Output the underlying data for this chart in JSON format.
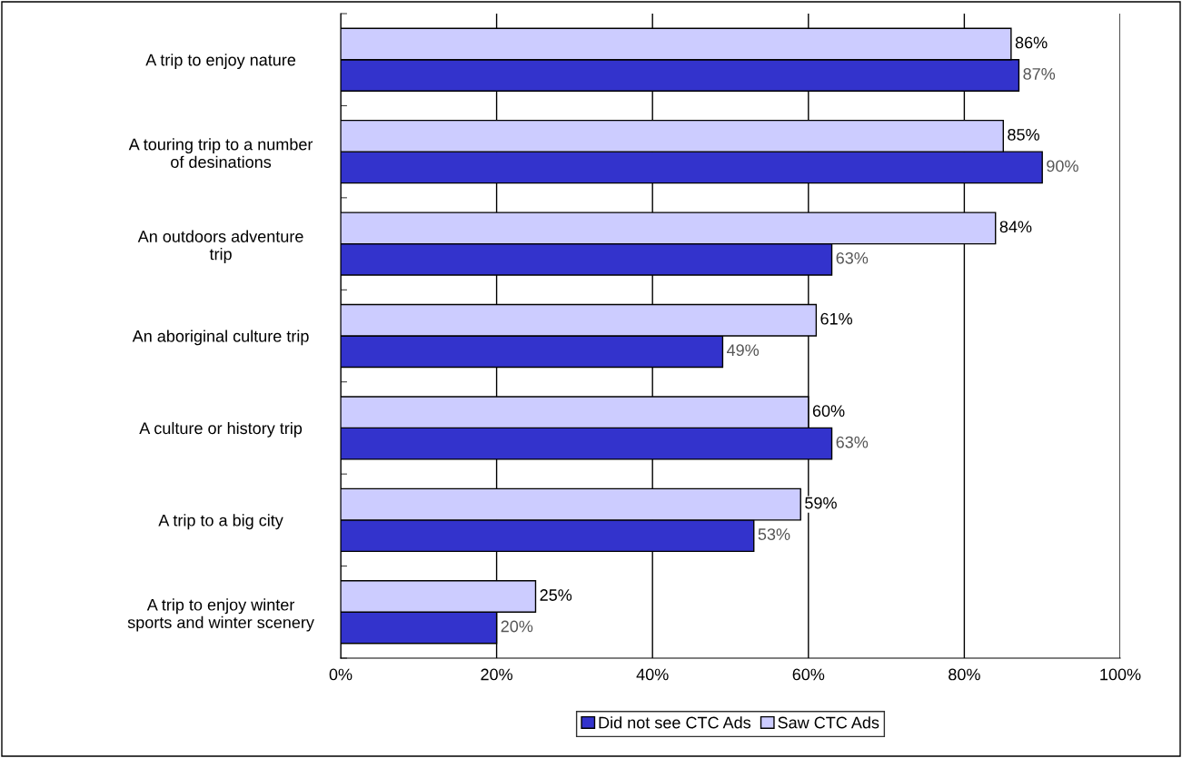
{
  "chart_data": {
    "type": "bar",
    "orientation": "horizontal",
    "categories": [
      "A trip to enjoy nature",
      "A touring trip to a number\nof desinations",
      "An outdoors adventure\ntrip",
      "An aboriginal culture trip",
      "A culture or history trip",
      "A trip to a big city",
      "A trip to enjoy winter\nsports and winter scenery"
    ],
    "series": [
      {
        "name": "Did not see CTC Ads",
        "color": "#3333cc",
        "values": [
          87,
          90,
          63,
          49,
          63,
          53,
          20
        ],
        "value_labels": [
          "87%",
          "90%",
          "63%",
          "49%",
          "63%",
          "53%",
          "20%"
        ]
      },
      {
        "name": "Saw CTC Ads",
        "color": "#ccccff",
        "values": [
          86,
          85,
          84,
          61,
          60,
          59,
          25
        ],
        "value_labels": [
          "86%",
          "85%",
          "84%",
          "61%",
          "60%",
          "59%",
          "25%"
        ]
      }
    ],
    "xlim": [
      0,
      100
    ],
    "xticks": [
      {
        "value": 0,
        "label": "0%"
      },
      {
        "value": 20,
        "label": "20%"
      },
      {
        "value": 40,
        "label": "40%"
      },
      {
        "value": 60,
        "label": "60%"
      },
      {
        "value": 80,
        "label": "80%"
      },
      {
        "value": 100,
        "label": "100%"
      }
    ],
    "grid": "x",
    "legend": "bottom"
  }
}
